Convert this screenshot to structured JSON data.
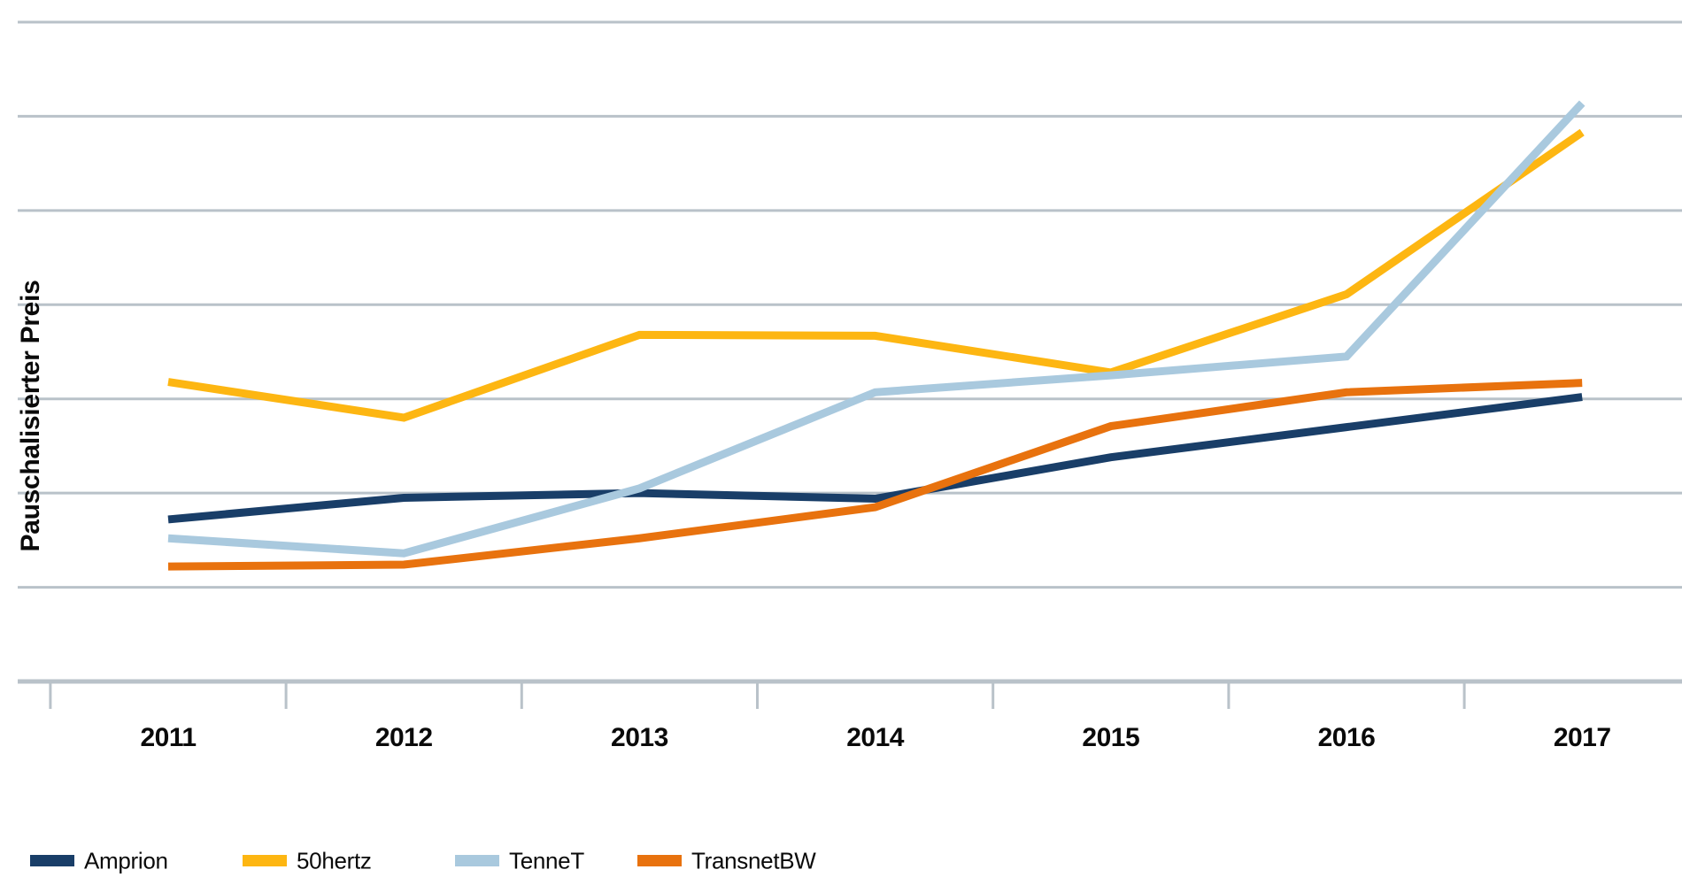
{
  "figure": {
    "background_color": "#ffffff",
    "grid_color": "#b9c2c9",
    "text_color": "#0a0a0a"
  },
  "chart_data": {
    "type": "line",
    "title": "",
    "xlabel": "",
    "ylabel": "Pauschalisierter Preis",
    "categories": [
      "2011",
      "2012",
      "2013",
      "2014",
      "2015",
      "2016",
      "2017"
    ],
    "series": [
      {
        "name": "Amprion",
        "color": "#193e68",
        "values": [
          1.72,
          1.95,
          2.0,
          1.94,
          2.38,
          2.7,
          3.02
        ]
      },
      {
        "name": "50hertz",
        "color": "#fdb612",
        "values": [
          3.18,
          2.8,
          3.68,
          3.67,
          3.28,
          4.11,
          5.83
        ]
      },
      {
        "name": "TenneT",
        "color": "#a9c9de",
        "values": [
          1.52,
          1.36,
          2.05,
          3.07,
          3.25,
          3.45,
          6.14
        ]
      },
      {
        "name": "TransnetBW",
        "color": "#e8720e",
        "values": [
          1.22,
          1.24,
          1.52,
          1.85,
          2.71,
          3.07,
          3.17
        ]
      }
    ],
    "y_axis": {
      "numeric_tick_labels_visible": false,
      "units": "arbitrary gridline units above baseline",
      "ylim": [
        0,
        7
      ],
      "gridline_count": 8
    },
    "grid": "horizontal",
    "legend_position": "bottom-left",
    "legend_items": [
      "Amprion",
      "50hertz",
      "TenneT",
      "TransnetBW"
    ]
  }
}
